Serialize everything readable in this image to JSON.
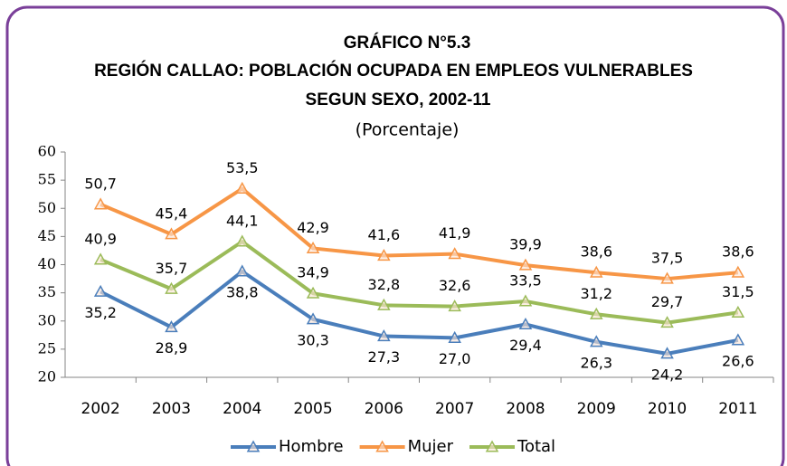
{
  "chart_data": {
    "type": "line",
    "title": [
      "GRÁFICO N°5.3",
      "REGIÓN CALLAO: POBLACIÓN OCUPADA EN EMPLEOS VULNERABLES",
      "SEGUN SEXO, 2002-11"
    ],
    "subtitle": "(Porcentaje)",
    "categories": [
      "2002",
      "2003",
      "2004",
      "2005",
      "2006",
      "2007",
      "2008",
      "2009",
      "2010",
      "2011"
    ],
    "series": [
      {
        "name": "Hombre",
        "color": "#4a7ebb",
        "values": [
          35.2,
          28.9,
          38.8,
          30.3,
          27.3,
          27.0,
          29.4,
          26.3,
          24.2,
          26.6
        ],
        "value_labels": [
          "35,2",
          "28,9",
          "38,8",
          "30,3",
          "27,3",
          "27,0",
          "29,4",
          "26,3",
          "24,2",
          "26,6"
        ]
      },
      {
        "name": "Mujer",
        "color": "#f79646",
        "values": [
          50.7,
          45.4,
          53.5,
          42.9,
          41.6,
          41.9,
          39.9,
          38.6,
          37.5,
          38.6
        ],
        "value_labels": [
          "50,7",
          "45,4",
          "53,5",
          "42,9",
          "41,6",
          "41,9",
          "39,9",
          "38,6",
          "37,5",
          "38,6"
        ]
      },
      {
        "name": "Total",
        "color": "#9bbb59",
        "values": [
          40.9,
          35.7,
          44.1,
          34.9,
          32.8,
          32.6,
          33.5,
          31.2,
          29.7,
          31.5
        ],
        "value_labels": [
          "40,9",
          "35,7",
          "44,1",
          "34,9",
          "32,8",
          "32,6",
          "33,5",
          "31,2",
          "29,7",
          "31,5"
        ]
      }
    ],
    "ylim": [
      20,
      60
    ],
    "yticks": [
      20,
      25,
      30,
      35,
      40,
      45,
      50,
      55,
      60
    ],
    "legend": "bottom"
  }
}
